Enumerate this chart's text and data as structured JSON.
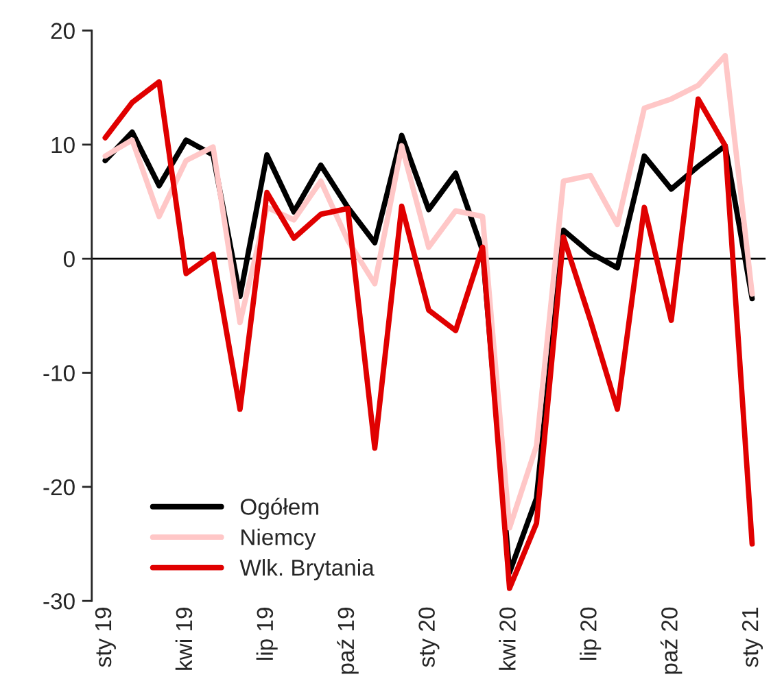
{
  "chart_data": {
    "type": "line",
    "categories": [
      "sty 19",
      null,
      null,
      "kwi 19",
      null,
      null,
      "lip 19",
      null,
      null,
      "paź 19",
      null,
      null,
      "sty 20",
      null,
      null,
      "kwi 20",
      null,
      null,
      "lip 20",
      null,
      null,
      "paź 20",
      null,
      null,
      "sty 21"
    ],
    "series": [
      {
        "name": "Ogółem",
        "color": "#000000",
        "values": [
          8.6,
          11.1,
          6.4,
          10.4,
          9.1,
          -3.3,
          9.1,
          4.1,
          8.2,
          4.5,
          1.4,
          10.8,
          4.3,
          7.5,
          0.7,
          -27.5,
          -21.0,
          2.5,
          0.5,
          -0.8,
          9.0,
          6.1,
          8.1,
          9.9,
          -3.5
        ]
      },
      {
        "name": "Niemcy",
        "color": "#ffc7c7",
        "values": [
          9.0,
          10.4,
          3.7,
          8.6,
          9.8,
          -5.6,
          4.5,
          3.4,
          6.8,
          1.6,
          -2.2,
          9.9,
          1.0,
          4.2,
          3.7,
          -23.6,
          -16.4,
          6.8,
          7.3,
          3.0,
          13.2,
          14.0,
          15.2,
          17.8,
          -3.1
        ]
      },
      {
        "name": "Wlk. Brytania",
        "color": "#e00000",
        "values": [
          10.6,
          13.7,
          15.5,
          -1.3,
          0.4,
          -13.2,
          5.8,
          1.8,
          3.9,
          4.4,
          -16.6,
          4.6,
          -4.5,
          -6.3,
          1.0,
          -28.9,
          -23.2,
          1.9,
          -5.4,
          -13.2,
          4.5,
          -5.4,
          14.0,
          9.9,
          -25.0
        ]
      }
    ],
    "ylim": [
      -30,
      20
    ],
    "yticks": [
      -30,
      -20,
      -10,
      0,
      10,
      20
    ],
    "ref_lines": [
      {
        "axis": "y",
        "value": 0,
        "color": "#000000"
      }
    ],
    "legend": "bottom left"
  }
}
